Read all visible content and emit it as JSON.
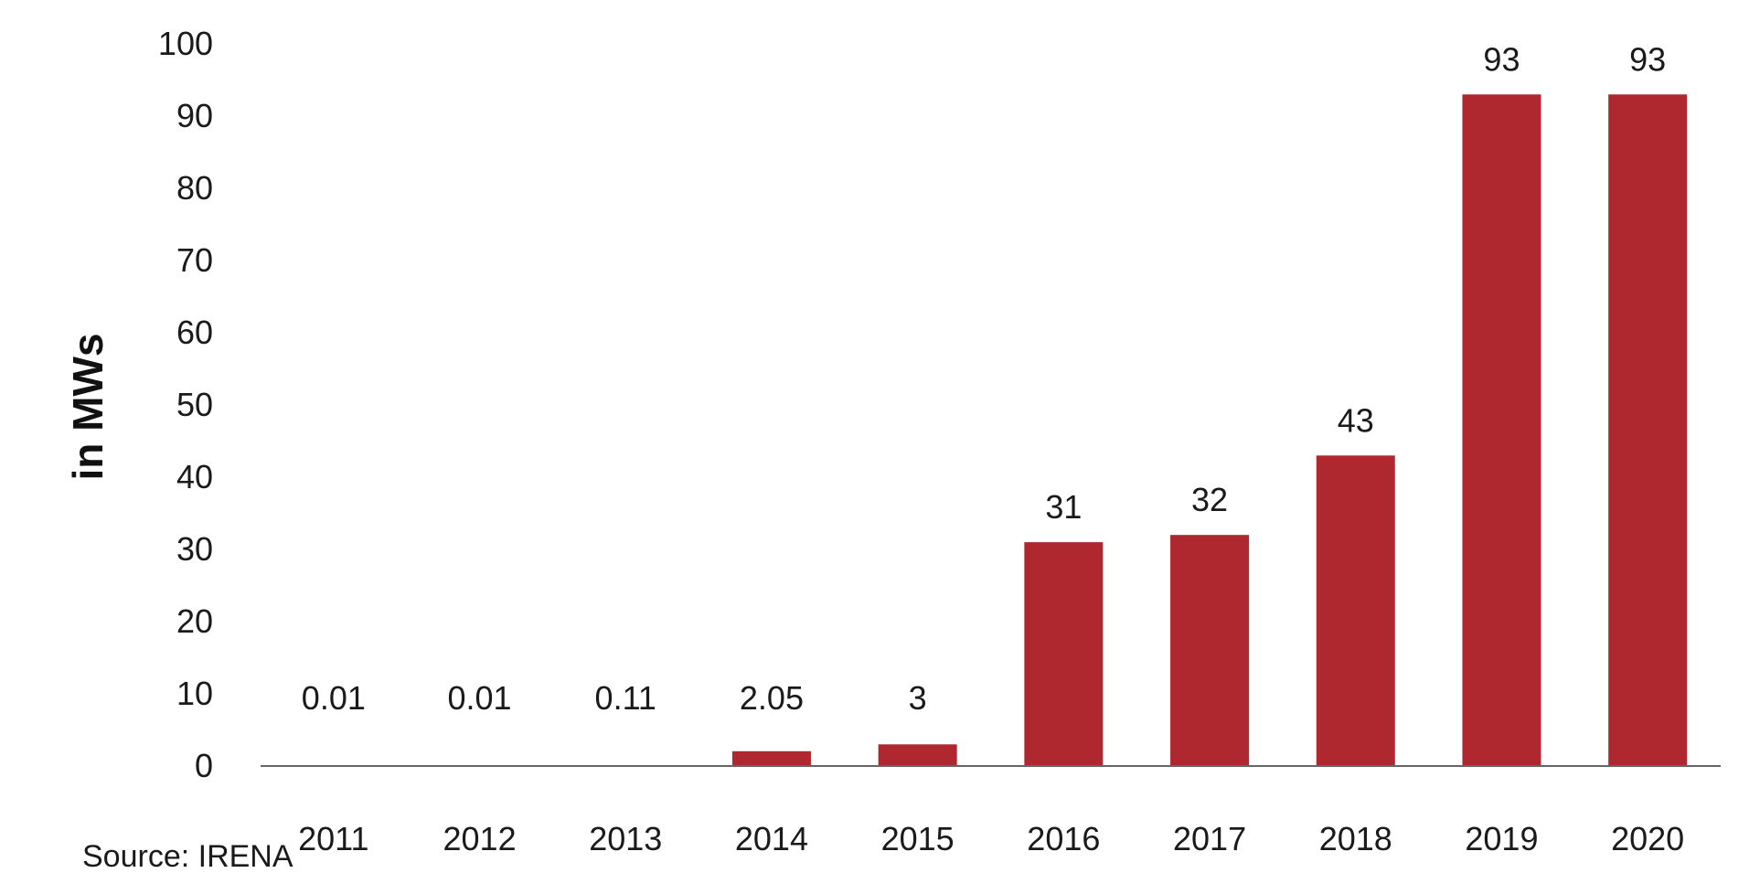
{
  "chart_data": {
    "type": "bar",
    "categories": [
      "2011",
      "2012",
      "2013",
      "2014",
      "2015",
      "2016",
      "2017",
      "2018",
      "2019",
      "2020"
    ],
    "values": [
      0.01,
      0.01,
      0.11,
      2.05,
      3,
      31,
      32,
      43,
      93,
      93
    ],
    "data_labels": [
      "0.01",
      "0.01",
      "0.11",
      "2.05",
      "3",
      "31",
      "32",
      "43",
      "93",
      "93"
    ],
    "title": "",
    "xlabel": "",
    "ylabel": "in MWs",
    "ylim": [
      0,
      100
    ],
    "yticks": [
      0,
      10,
      20,
      30,
      40,
      50,
      60,
      70,
      80,
      90,
      100
    ],
    "grid": false,
    "legend": "none",
    "bar_color": "#b0282f",
    "axis_color": "#666666"
  },
  "source_note": "Source: IRENA"
}
